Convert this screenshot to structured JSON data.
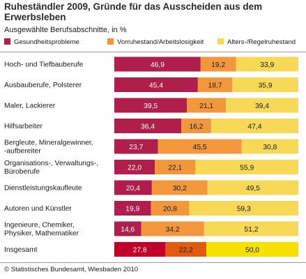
{
  "title": "Ruheständler 2009, Gründe für das Ausscheiden aus dem Erwerbsleben",
  "subtitle": "Ausgewählte Berufsabschnitte, in %",
  "footer": "© Statistisches Bundesamt, Wiesbaden 2010",
  "colors": {
    "gesundheit": "#b01e4e",
    "gesundheit_highlight": "#c0002a",
    "vorruhestand": "#f2973c",
    "vorruhestand_highlight": "#e05a10",
    "alter": "#f7d857",
    "alter_highlight": "#f5e000"
  },
  "chart_data": {
    "type": "bar",
    "orientation": "horizontal",
    "stacked": true,
    "title": "Ruheständler 2009, Gründe für das Ausscheiden aus dem Erwerbsleben",
    "subtitle": "Ausgewählte Berufsabschnitte, in %",
    "xlim": [
      0,
      100
    ],
    "grid": false,
    "legend_position": "top",
    "highlight_category": "Insgesamt",
    "categories": [
      "Hoch- und Tiefbauberufe",
      "Ausbauberufe, Polsterer",
      "Maler, Lackierer",
      "Hilfsarbeiter",
      "Bergleute, Mineralgewinner, -aufbereiter",
      "Organisations-, Verwaltungs-, Büroberufe",
      "Dienstleistungskaufleute",
      "Autoren und Künstler",
      "Ingenieure, Chemiker, Physiker, Mathematiker",
      "Insgesamt"
    ],
    "category_lines": [
      [
        "Hoch- und Tiefbauberufe"
      ],
      [
        "Ausbauberufe, Polsterer"
      ],
      [
        "Maler, Lackierer"
      ],
      [
        "Hilfsarbeiter"
      ],
      [
        "Bergleute, Mineralgewinner,",
        "-aufbereiter"
      ],
      [
        "Organisations-, Verwaltungs-,",
        "Büroberufe"
      ],
      [
        "Dienstleistungskaufleute"
      ],
      [
        "Autoren und Künstler"
      ],
      [
        "Ingenieure, Chemiker,",
        "Physiker, Mathematiker"
      ],
      [
        "Insgesamt"
      ]
    ],
    "series": [
      {
        "name": "Gesundheitsprobleme",
        "labels": [
          "46,9",
          "45,4",
          "39,5",
          "36,4",
          "23,7",
          "22,0",
          "20,4",
          "19,9",
          "14,6",
          "27,8"
        ],
        "values": [
          46.9,
          45.4,
          39.5,
          36.4,
          23.7,
          22.0,
          20.4,
          19.9,
          14.6,
          27.8
        ]
      },
      {
        "name": "Vorruhestand/Arbeitslosigkeit",
        "labels": [
          "19,2",
          "18,7",
          "21,1",
          "16,2",
          "45,5",
          "22,1",
          "30,2",
          "20,8",
          "34,2",
          "22,2"
        ],
        "values": [
          19.2,
          18.7,
          21.1,
          16.2,
          45.5,
          22.1,
          30.2,
          20.8,
          34.2,
          22.2
        ]
      },
      {
        "name": "Alters-/Regelruhestand",
        "labels": [
          "33,9",
          "35,9",
          "39,4",
          "47,4",
          "30,8",
          "55,9",
          "49,5",
          "59,3",
          "51,2",
          "50,0"
        ],
        "values": [
          33.9,
          35.9,
          39.4,
          47.4,
          30.8,
          55.9,
          49.5,
          59.3,
          51.2,
          50.0
        ]
      }
    ]
  }
}
